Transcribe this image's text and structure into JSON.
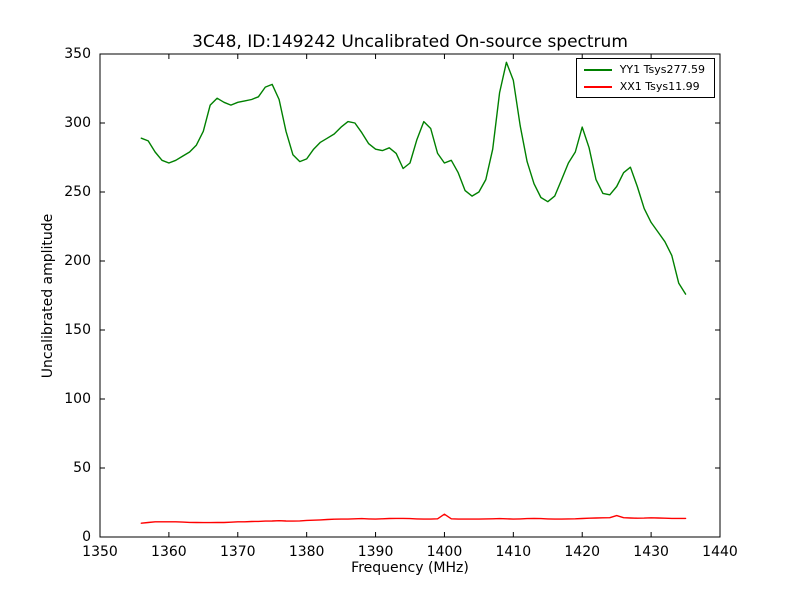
{
  "chart_data": {
    "type": "line",
    "title": "3C48, ID:149242 Uncalibrated On-source spectrum",
    "xlabel": "Frequency (MHz)",
    "ylabel": "Uncalibrated amplitude",
    "xlim": [
      1350,
      1440
    ],
    "ylim": [
      0,
      350
    ],
    "x_ticks": [
      1350,
      1360,
      1370,
      1380,
      1390,
      1400,
      1410,
      1420,
      1430,
      1440
    ],
    "y_ticks": [
      0,
      50,
      100,
      150,
      200,
      250,
      300,
      350
    ],
    "grid": false,
    "legend_position": "upper right",
    "background_color": "#ffffff",
    "axes_color": "#000000",
    "x": [
      1356,
      1357,
      1358,
      1359,
      1360,
      1361,
      1362,
      1363,
      1364,
      1365,
      1366,
      1367,
      1368,
      1369,
      1370,
      1371,
      1372,
      1373,
      1374,
      1375,
      1376,
      1377,
      1378,
      1379,
      1380,
      1381,
      1382,
      1383,
      1384,
      1385,
      1386,
      1387,
      1388,
      1389,
      1390,
      1391,
      1392,
      1393,
      1394,
      1395,
      1396,
      1397,
      1398,
      1399,
      1400,
      1401,
      1402,
      1403,
      1404,
      1405,
      1406,
      1407,
      1408,
      1409,
      1410,
      1411,
      1412,
      1413,
      1414,
      1415,
      1416,
      1417,
      1418,
      1419,
      1420,
      1421,
      1422,
      1423,
      1424,
      1425,
      1426,
      1427,
      1428,
      1429,
      1430,
      1431,
      1432,
      1433,
      1434,
      1435
    ],
    "series": [
      {
        "id": "yy1",
        "name": "YY1 Tsys277.59",
        "color": "#008000",
        "values": [
          289,
          287,
          279,
          273,
          271,
          273,
          276,
          279,
          284,
          294,
          313,
          318,
          315,
          313,
          315,
          316,
          317,
          319,
          326,
          328,
          317,
          294,
          277,
          272,
          274,
          281,
          286,
          289,
          292,
          297,
          301,
          300,
          293,
          285,
          281,
          280,
          282,
          278,
          267,
          271,
          288,
          301,
          296,
          278,
          271,
          273,
          264,
          251,
          247,
          250,
          259,
          281,
          322,
          344,
          331,
          298,
          272,
          256,
          246,
          243,
          247,
          259,
          271,
          279,
          297,
          282,
          259,
          249,
          248,
          254,
          264,
          268,
          254,
          238,
          228,
          221,
          214,
          204,
          184,
          176
        ]
      },
      {
        "id": "xx1",
        "name": "XX1 Tsys11.99",
        "color": "#ff0000",
        "values": [
          10,
          10.5,
          11,
          11,
          11,
          11,
          10.8,
          10.6,
          10.5,
          10.4,
          10.4,
          10.5,
          10.5,
          10.7,
          11,
          11,
          11.2,
          11.3,
          11.5,
          11.6,
          11.8,
          11.6,
          11.5,
          11.7,
          12,
          12.2,
          12.4,
          12.7,
          12.9,
          13,
          13,
          13.2,
          13.3,
          13.1,
          13,
          13.2,
          13.4,
          13.5,
          13.5,
          13.3,
          13.1,
          13,
          13,
          13.2,
          16.5,
          13.2,
          13,
          13,
          13,
          13,
          13.1,
          13.2,
          13.3,
          13.2,
          13,
          13.1,
          13.3,
          13.4,
          13.3,
          13.1,
          13,
          13,
          13.1,
          13.2,
          13.4,
          13.6,
          13.8,
          13.9,
          14,
          15.5,
          14,
          13.8,
          13.6,
          13.7,
          13.9,
          13.8,
          13.6,
          13.5,
          13.5,
          13.5
        ]
      }
    ]
  }
}
